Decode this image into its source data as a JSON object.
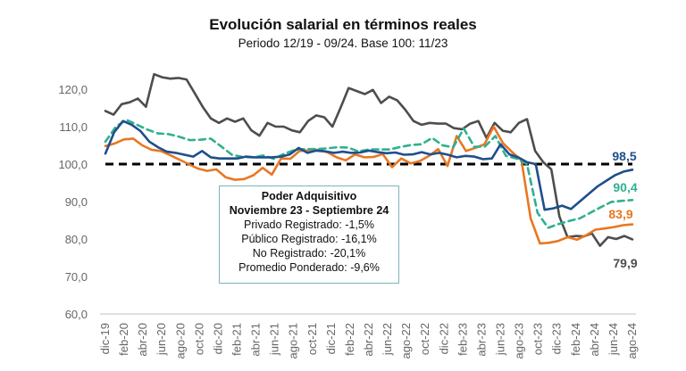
{
  "chart_data": {
    "type": "line",
    "title": "Evolución salarial en términos reales",
    "subtitle": "Periodo 12/19 - 09/24. Base 100: 11/23",
    "xlabel": "",
    "ylabel": "",
    "ylim": [
      60,
      125
    ],
    "y_ticks": [
      "60,0",
      "70,0",
      "80,0",
      "90,0",
      "100,0",
      "110,0",
      "120,0"
    ],
    "y_tick_values": [
      60,
      70,
      80,
      90,
      100,
      110,
      120
    ],
    "x_tick_labels": [
      "dic-19",
      "feb-20",
      "abr-20",
      "jun-20",
      "ago-20",
      "oct-20",
      "dic-20",
      "feb-21",
      "abr-21",
      "jun-21",
      "ago-21",
      "oct-21",
      "dic-21",
      "feb-22",
      "abr-22",
      "jun-22",
      "ago-22",
      "oct-22",
      "dic-22",
      "feb-23",
      "abr-23",
      "jun-23",
      "ago-23",
      "oct-23",
      "dic-23",
      "feb-24",
      "abr-24",
      "jun-24",
      "ago-24"
    ],
    "reference_line": {
      "value": 100,
      "style": "dashed",
      "color": "#000000"
    },
    "series": [
      {
        "name": "Privado Registrado",
        "color": "#1f4e8c",
        "style": "solid",
        "end_label": "98,5",
        "values": [
          102.8,
          108.5,
          111.5,
          110.5,
          108.8,
          106.0,
          104.5,
          103.3,
          103.0,
          102.5,
          102.0,
          103.5,
          101.8,
          101.5,
          101.5,
          101.5,
          102.0,
          101.8,
          101.8,
          101.8,
          102.0,
          102.6,
          104.3,
          103.0,
          103.6,
          103.4,
          103.0,
          103.3,
          103.0,
          103.1,
          103.6,
          103.2,
          102.9,
          103.1,
          102.5,
          102.6,
          103.2,
          102.6,
          103.0,
          102.5,
          101.8,
          102.2,
          102.0,
          101.3,
          101.5,
          105.3,
          102.6,
          101.8,
          100.5,
          100.0,
          87.8,
          88.2,
          88.9,
          88.0,
          90.0,
          92.0,
          94.0,
          95.5,
          97.0,
          98.0,
          98.5
        ]
      },
      {
        "name": "Público Registrado",
        "color": "#e87722",
        "style": "solid",
        "end_label": "83,9",
        "values": [
          104.8,
          105.5,
          106.6,
          106.8,
          105.0,
          103.8,
          103.5,
          102.4,
          101.2,
          100.0,
          98.8,
          98.2,
          98.6,
          96.5,
          95.8,
          96.0,
          97.0,
          99.0,
          97.2,
          101.5,
          101.4,
          103.5,
          103.7,
          103.8,
          103.2,
          101.8,
          101.0,
          102.6,
          101.8,
          101.9,
          102.7,
          99.2,
          101.5,
          100.2,
          100.8,
          102.2,
          104.0,
          99.5,
          107.5,
          103.5,
          104.3,
          105.3,
          110.0,
          105.6,
          103.2,
          101.0,
          85.5,
          78.8,
          79.0,
          79.5,
          80.5,
          79.8,
          81.0,
          82.5,
          82.8,
          83.2,
          83.7,
          83.9
        ]
      },
      {
        "name": "No Registrado",
        "color": "#4d4d4d",
        "style": "solid",
        "end_label": "79,9",
        "values": [
          114.2,
          113.2,
          116.0,
          116.5,
          117.5,
          115.3,
          124.0,
          123.2,
          122.8,
          123.0,
          122.6,
          119.0,
          115.3,
          112.2,
          111.0,
          112.2,
          111.3,
          112.2,
          109.0,
          107.6,
          111.0,
          110.0,
          110.0,
          109.0,
          108.5,
          111.5,
          113.0,
          112.5,
          110.0,
          115.0,
          120.3,
          119.5,
          118.7,
          119.8,
          116.3,
          118.0,
          117.0,
          114.5,
          111.5,
          110.5,
          111.0,
          110.8,
          110.8,
          109.6,
          109.3,
          110.8,
          111.5,
          107.0,
          111.0,
          108.9,
          108.5,
          111.0,
          112.0,
          103.5,
          100.5,
          98.6,
          86.0,
          80.5,
          80.8,
          80.7,
          81.5,
          78.2,
          80.5,
          80.0,
          80.8,
          79.9
        ]
      },
      {
        "name": "Promedio Ponderado",
        "color": "#2fb08f",
        "style": "dashed",
        "end_label": "90,4",
        "values": [
          106.0,
          110.0,
          111.8,
          110.5,
          109.2,
          108.2,
          108.0,
          107.3,
          106.4,
          106.5,
          106.8,
          104.7,
          102.5,
          101.9,
          101.8,
          102.3,
          101.4,
          102.8,
          103.8,
          104.0,
          104.0,
          104.2,
          104.5,
          104.4,
          103.4,
          103.9,
          103.9,
          103.9,
          104.6,
          105.1,
          105.3,
          107.0,
          105.0,
          104.5,
          109.5,
          104.6,
          104.7,
          107.5,
          102.2,
          101.5,
          100.0,
          87.0,
          83.0,
          84.0,
          84.8,
          85.5,
          87.0,
          88.5,
          89.9,
          90.2,
          90.4
        ]
      }
    ],
    "annotation_box": {
      "title_lines": [
        "Poder Adquisitivo",
        "Noviembre 23 - Septiembre 24"
      ],
      "lines": [
        "Privado Registrado: -1,5%",
        "Público Registrado: -16,1%",
        "No Registrado: -20,1%",
        "Promedio Ponderado: -9,6%"
      ]
    }
  }
}
